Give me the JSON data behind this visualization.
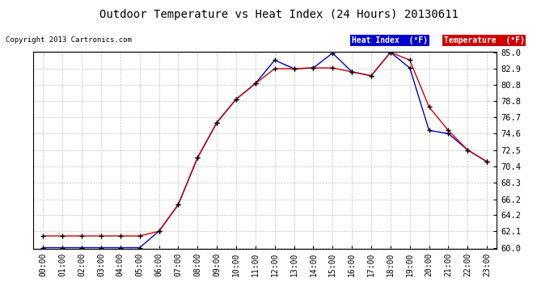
{
  "title": "Outdoor Temperature vs Heat Index (24 Hours) 20130611",
  "copyright": "Copyright 2013 Cartronics.com",
  "background_color": "#ffffff",
  "plot_bg_color": "#ffffff",
  "grid_color": "#bbbbbb",
  "hours": [
    "00:00",
    "01:00",
    "02:00",
    "03:00",
    "04:00",
    "05:00",
    "06:00",
    "07:00",
    "08:00",
    "09:00",
    "10:00",
    "11:00",
    "12:00",
    "13:00",
    "14:00",
    "15:00",
    "16:00",
    "17:00",
    "18:00",
    "19:00",
    "20:00",
    "21:00",
    "22:00",
    "23:00"
  ],
  "temperature": [
    61.5,
    61.5,
    61.5,
    61.5,
    61.5,
    61.5,
    62.1,
    65.5,
    71.5,
    76.0,
    79.0,
    81.0,
    82.9,
    82.9,
    83.0,
    83.0,
    82.5,
    82.0,
    85.0,
    84.0,
    78.0,
    75.0,
    72.5,
    71.0
  ],
  "heat_index": [
    60.0,
    60.0,
    60.0,
    60.0,
    60.0,
    60.0,
    62.1,
    65.5,
    71.5,
    76.0,
    79.0,
    81.0,
    84.0,
    82.9,
    83.0,
    84.9,
    82.5,
    82.0,
    85.0,
    83.0,
    75.0,
    74.6,
    72.5,
    71.0
  ],
  "ylim_min": 59.9,
  "ylim_max": 85.1,
  "yticks": [
    60.0,
    62.1,
    64.2,
    66.2,
    68.3,
    70.4,
    72.5,
    74.6,
    76.7,
    78.8,
    80.8,
    82.9,
    85.0
  ],
  "heat_index_color": "#0000cc",
  "temperature_color": "#cc0000",
  "legend_hi_label": "Heat Index  (°F)",
  "legend_temp_label": "Temperature  (°F)"
}
